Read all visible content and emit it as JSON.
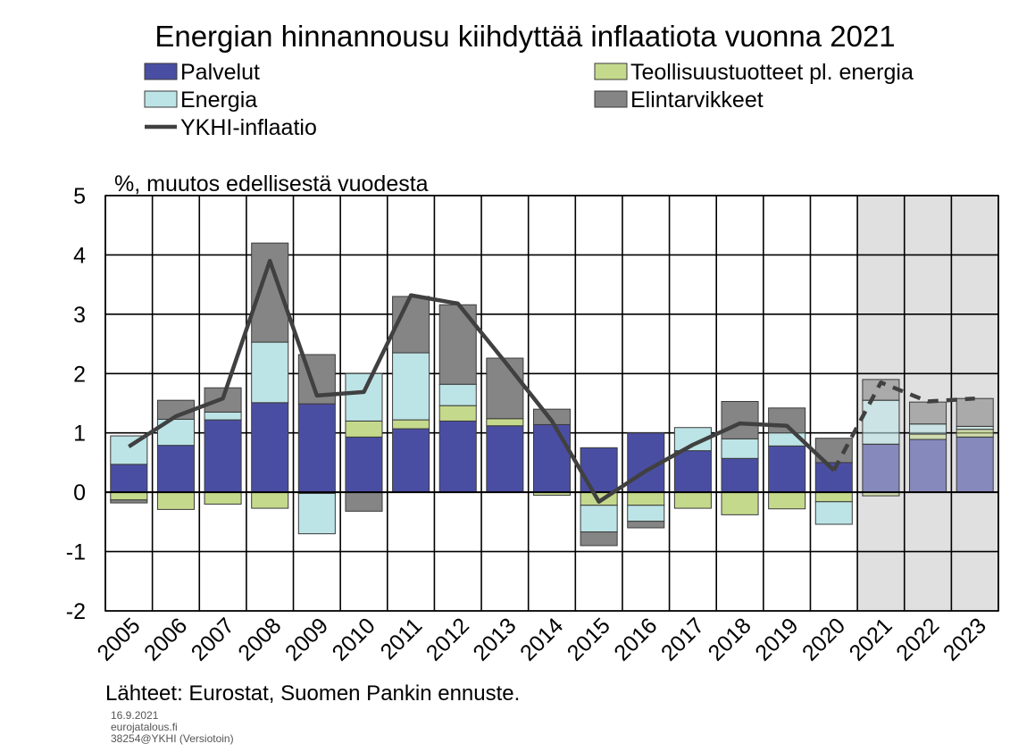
{
  "chart_data": {
    "type": "bar",
    "title": "Energian hinnannousu kiihdyttää inflaatiota vuonna 2021",
    "ylabel": "%, muutos edellisestä vuodesta",
    "xlabel": "",
    "categories": [
      "2005",
      "2006",
      "2007",
      "2008",
      "2009",
      "2010",
      "2011",
      "2012",
      "2013",
      "2014",
      "2015",
      "2016",
      "2017",
      "2018",
      "2019",
      "2020",
      "2021",
      "2022",
      "2023"
    ],
    "ylim": [
      -2,
      5
    ],
    "yticks": [
      5,
      4,
      3,
      2,
      1,
      0,
      -1,
      -2
    ],
    "grid": true,
    "stacked": true,
    "forecast_shaded_from": "2021",
    "series": [
      {
        "name": "Palvelut",
        "kind": "bar",
        "color": "#4a4ea3",
        "values": [
          0.47,
          0.79,
          1.22,
          1.51,
          1.49,
          0.93,
          1.07,
          1.2,
          1.12,
          1.14,
          0.75,
          1.0,
          0.7,
          0.57,
          0.78,
          0.5,
          0.81,
          0.89,
          0.93
        ]
      },
      {
        "name": "Teollisuustuotteet pl. energia",
        "kind": "bar",
        "color": "#c5d98c",
        "values": [
          -0.13,
          -0.29,
          -0.2,
          -0.27,
          -0.02,
          0.27,
          0.15,
          0.26,
          0.12,
          -0.05,
          -0.22,
          -0.22,
          -0.27,
          -0.38,
          -0.28,
          -0.16,
          -0.06,
          0.09,
          0.13
        ]
      },
      {
        "name": "Energia",
        "kind": "bar",
        "color": "#bce4e6",
        "values": [
          0.48,
          0.44,
          0.13,
          1.02,
          -0.68,
          0.8,
          1.13,
          0.36,
          0.0,
          0.0,
          -0.45,
          -0.27,
          0.39,
          0.33,
          0.22,
          -0.38,
          0.74,
          0.17,
          0.05
        ]
      },
      {
        "name": "Elintarvikkeet",
        "kind": "bar",
        "color": "#858585",
        "values": [
          -0.05,
          0.32,
          0.41,
          1.67,
          0.83,
          -0.32,
          0.95,
          1.34,
          1.02,
          0.26,
          -0.23,
          -0.11,
          0.0,
          0.63,
          0.42,
          0.41,
          0.35,
          0.37,
          0.47
        ]
      },
      {
        "name": "YKHI-inflaatio",
        "kind": "line",
        "color": "#404040",
        "values": [
          0.77,
          1.28,
          1.58,
          3.9,
          1.63,
          1.69,
          3.32,
          3.18,
          2.2,
          1.2,
          -0.16,
          0.36,
          0.8,
          1.16,
          1.12,
          0.37,
          1.85,
          1.53,
          1.58
        ],
        "dashed_from": "2020"
      }
    ],
    "legend_position": "top",
    "source": "Lähteet: Eurostat, Suomen Pankin ennuste.",
    "footer": [
      "16.9.2021",
      "eurojatalous.fi",
      "38254@YKHI (Versiotoin)"
    ]
  }
}
